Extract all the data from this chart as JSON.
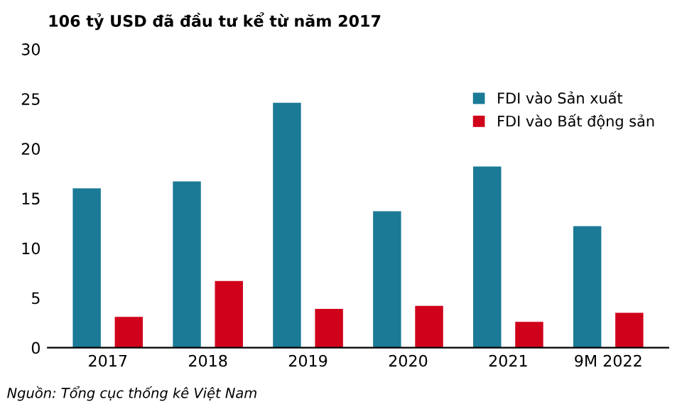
{
  "chart_data": {
    "type": "bar",
    "title": "106 tỷ USD đã đầu tư kể từ năm 2017",
    "categories": [
      "2017",
      "2018",
      "2019",
      "2020",
      "2021",
      "9M 2022"
    ],
    "series": [
      {
        "name": "FDI vào Sản xuất",
        "color": "#1b7a96",
        "values": [
          16.0,
          16.7,
          24.6,
          13.7,
          18.2,
          12.2
        ]
      },
      {
        "name": "FDI vào Bất động sản",
        "color": "#d0021b",
        "values": [
          3.1,
          6.7,
          3.9,
          4.2,
          2.6,
          3.5
        ]
      }
    ],
    "ylim": [
      0,
      30
    ],
    "yticks": [
      0,
      5,
      10,
      15,
      20,
      25,
      30
    ],
    "grid": false,
    "legend": "top right",
    "annotations": [
      "Nguồn: Tổng cục thống kê Việt Nam"
    ]
  }
}
